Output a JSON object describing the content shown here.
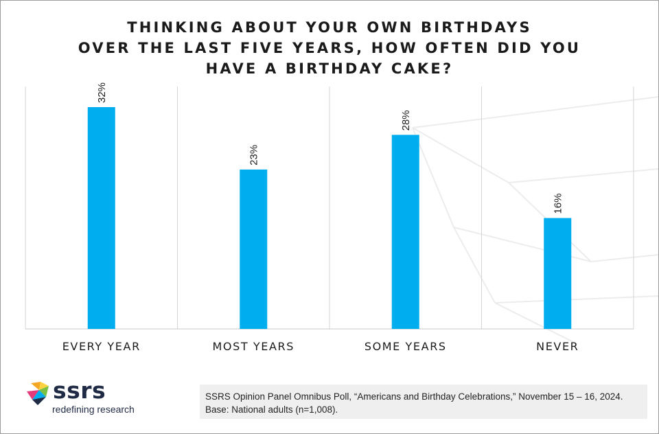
{
  "title_lines": [
    "THINKING ABOUT YOUR OWN BIRTHDAYS",
    "OVER THE LAST FIVE YEARS, HOW OFTEN DID YOU",
    "HAVE A BIRTHDAY CAKE?"
  ],
  "chart_data": {
    "type": "bar",
    "title": "THINKING ABOUT YOUR OWN BIRTHDAYS OVER THE LAST FIVE YEARS, HOW OFTEN DID YOU HAVE A BIRTHDAY CAKE?",
    "categories": [
      "EVERY YEAR",
      "MOST YEARS",
      "SOME YEARS",
      "NEVER"
    ],
    "values": [
      32,
      23,
      28,
      16
    ],
    "value_labels": [
      "32%",
      "23%",
      "28%",
      "16%"
    ],
    "unit": "%",
    "xlabel": "",
    "ylabel": "",
    "ylim": [
      0,
      35
    ],
    "grid": "vertical separators between categories",
    "legend": "none",
    "bar_color": "#00aeef"
  },
  "logo": {
    "wordmark": "ssrs",
    "tagline": "redefining research"
  },
  "source": {
    "line1": "SSRS Opinion Panel Omnibus Poll, “Americans and Birthday Celebrations,” November 15 – 16, 2024.",
    "line2": "Base: National adults (n=1,008)."
  }
}
